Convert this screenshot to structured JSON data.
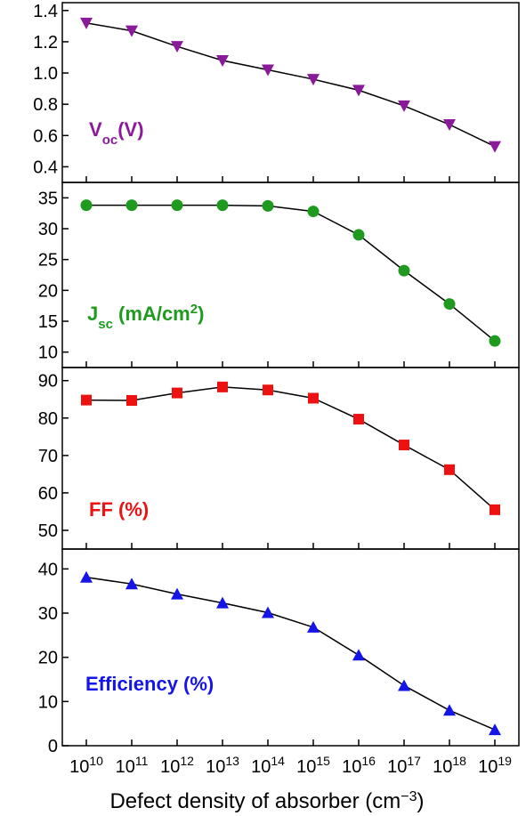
{
  "chart_data": [
    {
      "type": "line",
      "x": [
        10000000000.0,
        100000000000.0,
        1000000000000.0,
        10000000000000.0,
        100000000000000.0,
        1000000000000000.0,
        1e+16,
        1e+17,
        1e+18,
        1e+19
      ],
      "xscale": "log",
      "xlabel": "Defect density of absorber (cm−3)",
      "xtick_labels": [
        "10",
        "10",
        "10",
        "10",
        "10",
        "10",
        "10",
        "10",
        "10",
        "10"
      ],
      "xtick_exponents": [
        "10",
        "11",
        "12",
        "13",
        "14",
        "15",
        "16",
        "17",
        "18",
        "19"
      ],
      "xlabel_text": "Defect density of absorber (cm",
      "xlabel_sup": "−3",
      "xlabel_close": ")",
      "panels": [
        {
          "key": "voc",
          "label_main": "V",
          "label_sub": "oc",
          "label_rest": "(V)",
          "label_sup": "",
          "label_end": "",
          "color": "#8B1A9B",
          "marker": "triangle-down",
          "values": [
            1.32,
            1.27,
            1.17,
            1.08,
            1.02,
            0.96,
            0.89,
            0.79,
            0.67,
            0.53
          ],
          "ylim": [
            0.3,
            1.45
          ],
          "yticks": [
            0.4,
            0.6,
            0.8,
            1.0,
            1.2,
            1.4
          ],
          "ytick_labels": [
            "0.4",
            "0.6",
            "0.8",
            "1.0",
            "1.2",
            "1.4"
          ]
        },
        {
          "key": "jsc",
          "label_main": "J",
          "label_sub": "sc",
          "label_rest": " (mA/cm",
          "label_sup": "2",
          "label_end": ")",
          "color": "#1E9A1E",
          "marker": "circle",
          "values": [
            33.8,
            33.8,
            33.8,
            33.8,
            33.7,
            32.8,
            29.0,
            23.2,
            17.8,
            11.8
          ],
          "ylim": [
            7.5,
            37.5
          ],
          "yticks": [
            10,
            15,
            20,
            25,
            30,
            35
          ],
          "ytick_labels": [
            "10",
            "15",
            "20",
            "25",
            "30",
            "35"
          ]
        },
        {
          "key": "ff",
          "label_main": "FF (%)",
          "label_sub": "",
          "label_rest": "",
          "label_sup": "",
          "label_end": "",
          "color": "#EE1111",
          "marker": "square",
          "values": [
            84.8,
            84.7,
            86.7,
            88.3,
            87.5,
            85.3,
            79.7,
            72.8,
            66.2,
            55.5
          ],
          "ylim": [
            45,
            93.5
          ],
          "yticks": [
            50,
            60,
            70,
            80,
            90
          ],
          "ytick_labels": [
            "50",
            "60",
            "70",
            "80",
            "90"
          ]
        },
        {
          "key": "eff",
          "label_main": "Efficiency (%)",
          "label_sub": "",
          "label_rest": "",
          "label_sup": "",
          "label_end": "",
          "color": "#1515E8",
          "marker": "triangle-up",
          "values": [
            38.1,
            36.6,
            34.3,
            32.3,
            30.1,
            26.8,
            20.5,
            13.6,
            8.0,
            3.6
          ],
          "ylim": [
            0,
            44.5
          ],
          "yticks": [
            0,
            10,
            20,
            30,
            40
          ],
          "ytick_labels": [
            "0",
            "10",
            "20",
            "30",
            "40"
          ]
        }
      ]
    }
  ]
}
